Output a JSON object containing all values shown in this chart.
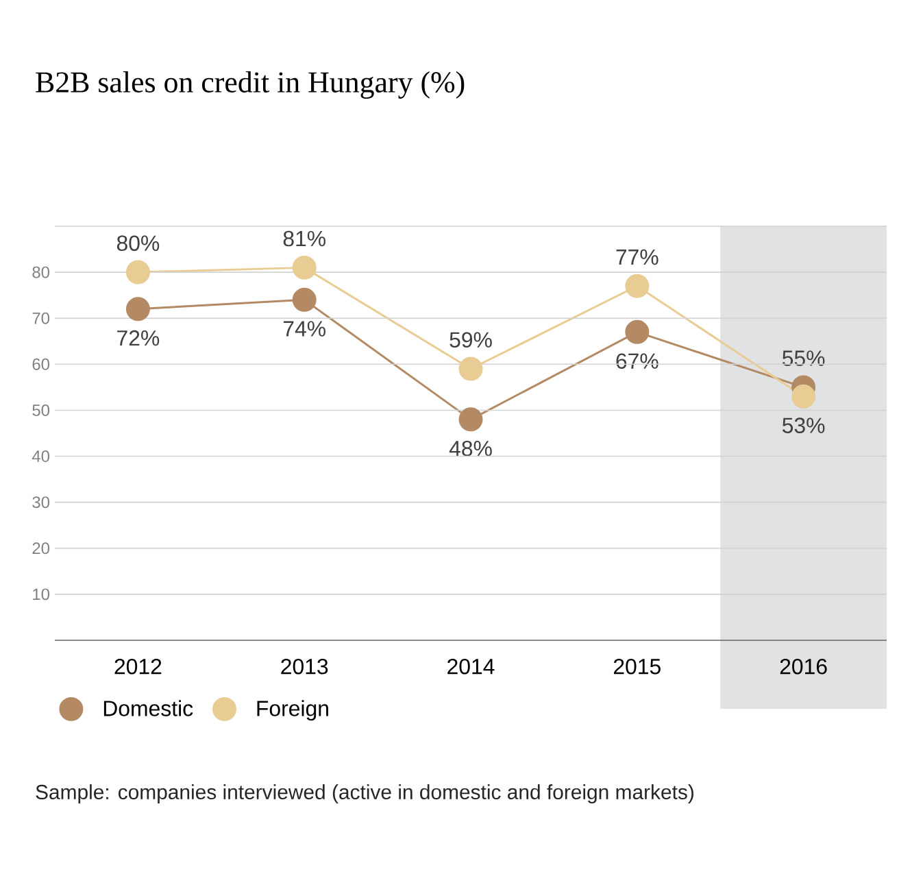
{
  "chart_data": {
    "type": "line",
    "title": "B2B sales on credit in Hungary (%)",
    "categories": [
      "2012",
      "2013",
      "2014",
      "2015",
      "2016"
    ],
    "series": [
      {
        "name": "Domestic",
        "color": "#b38a63",
        "values": [
          72,
          74,
          48,
          67,
          55
        ],
        "value_labels": [
          "72%",
          "74%",
          "48%",
          "67%",
          "55%"
        ]
      },
      {
        "name": "Foreign",
        "color": "#e8cc94",
        "values": [
          80,
          81,
          59,
          77,
          53
        ],
        "value_labels": [
          "80%",
          "81%",
          "59%",
          "77%",
          "53%"
        ]
      }
    ],
    "ylim": [
      0,
      90
    ],
    "yticks": [
      10,
      20,
      30,
      40,
      50,
      60,
      70,
      80,
      {
        "value": 90,
        "label": null
      }
    ],
    "bands": [
      {
        "axis": "x",
        "from": "2016",
        "to": "2016",
        "color": "#e1e2e4"
      }
    ],
    "grid": "y",
    "legend": "bottom left",
    "marker": "circle",
    "line_style": "solid",
    "annotations": [
      "Sample: companies interviewed (active in domestic and foreign markets)"
    ]
  }
}
